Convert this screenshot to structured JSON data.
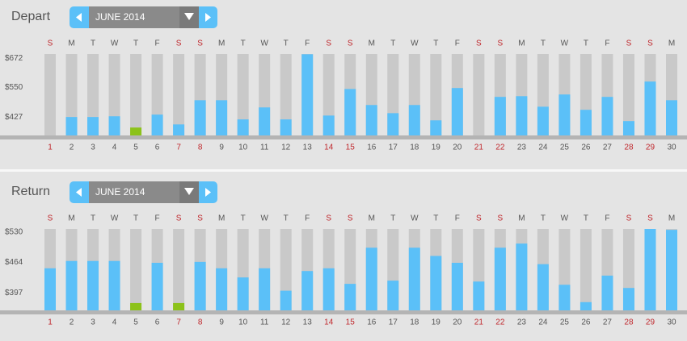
{
  "chart_data": [
    {
      "type": "bar",
      "title": "Depart",
      "month_label": "JUNE 2014",
      "weekdays": [
        "S",
        "M",
        "T",
        "W",
        "T",
        "F",
        "S",
        "S",
        "M",
        "T",
        "W",
        "T",
        "F",
        "S",
        "S",
        "M",
        "T",
        "W",
        "T",
        "F",
        "S",
        "S",
        "M",
        "T",
        "W",
        "T",
        "F",
        "S",
        "S",
        "M"
      ],
      "categories": [
        "1",
        "2",
        "3",
        "4",
        "5",
        "6",
        "7",
        "8",
        "9",
        "10",
        "11",
        "12",
        "13",
        "14",
        "15",
        "16",
        "17",
        "18",
        "19",
        "20",
        "21",
        "22",
        "23",
        "24",
        "25",
        "26",
        "27",
        "28",
        "29",
        "30"
      ],
      "category_colors": [
        "#c0282d",
        "#555555",
        "#555555",
        "#555555",
        "#555555",
        "#555555",
        "#c0282d",
        "#c0282d",
        "#555555",
        "#555555",
        "#555555",
        "#555555",
        "#555555",
        "#c0282d",
        "#c0282d",
        "#555555",
        "#555555",
        "#555555",
        "#555555",
        "#555555",
        "#c0282d",
        "#c0282d",
        "#555555",
        "#555555",
        "#555555",
        "#555555",
        "#555555",
        "#c0282d",
        "#c0282d",
        "#555555"
      ],
      "values": [
        null,
        427,
        427,
        430,
        383,
        437,
        396,
        497,
        497,
        417,
        467,
        417,
        689,
        433,
        544,
        477,
        443,
        477,
        413,
        548,
        null,
        511,
        514,
        470,
        521,
        457,
        511,
        410,
        575,
        497
      ],
      "colors": [
        null,
        "#5bc0f8",
        "#5bc0f8",
        "#5bc0f8",
        "#8cc21a",
        "#5bc0f8",
        "#5bc0f8",
        "#5bc0f8",
        "#5bc0f8",
        "#5bc0f8",
        "#5bc0f8",
        "#5bc0f8",
        "#5bc0f8",
        "#5bc0f8",
        "#5bc0f8",
        "#5bc0f8",
        "#5bc0f8",
        "#5bc0f8",
        "#5bc0f8",
        "#5bc0f8",
        null,
        "#5bc0f8",
        "#5bc0f8",
        "#5bc0f8",
        "#5bc0f8",
        "#5bc0f8",
        "#5bc0f8",
        "#5bc0f8",
        "#5bc0f8",
        "#5bc0f8"
      ],
      "ylim": [
        350,
        690
      ],
      "yticks": [
        {
          "value": 427,
          "label": "$427"
        },
        {
          "value": 550,
          "label": "$550"
        },
        {
          "value": 672,
          "label": "$672"
        }
      ]
    },
    {
      "type": "bar",
      "title": "Return",
      "month_label": "JUNE 2014",
      "weekdays": [
        "S",
        "M",
        "T",
        "W",
        "T",
        "F",
        "S",
        "S",
        "M",
        "T",
        "W",
        "T",
        "F",
        "S",
        "S",
        "M",
        "T",
        "W",
        "T",
        "F",
        "S",
        "S",
        "M",
        "T",
        "W",
        "T",
        "F",
        "S",
        "S",
        "M"
      ],
      "categories": [
        "1",
        "2",
        "3",
        "4",
        "5",
        "6",
        "7",
        "8",
        "9",
        "10",
        "11",
        "12",
        "13",
        "14",
        "15",
        "16",
        "17",
        "18",
        "19",
        "20",
        "21",
        "22",
        "23",
        "24",
        "25",
        "26",
        "27",
        "28",
        "29",
        "30"
      ],
      "category_colors": [
        "#c0282d",
        "#555555",
        "#555555",
        "#555555",
        "#555555",
        "#555555",
        "#c0282d",
        "#c0282d",
        "#555555",
        "#555555",
        "#555555",
        "#555555",
        "#555555",
        "#c0282d",
        "#c0282d",
        "#555555",
        "#555555",
        "#555555",
        "#555555",
        "#555555",
        "#c0282d",
        "#c0282d",
        "#555555",
        "#555555",
        "#555555",
        "#555555",
        "#555555",
        "#c0282d",
        "#c0282d",
        "#555555"
      ],
      "values": [
        451,
        467,
        467,
        467,
        375,
        463,
        375,
        465,
        451,
        431,
        451,
        402,
        445,
        451,
        417,
        496,
        424,
        496,
        478,
        463,
        422,
        496,
        505,
        460,
        415,
        377,
        435,
        408,
        537,
        535
      ],
      "colors": [
        "#5bc0f8",
        "#5bc0f8",
        "#5bc0f8",
        "#5bc0f8",
        "#8cc21a",
        "#5bc0f8",
        "#8cc21a",
        "#5bc0f8",
        "#5bc0f8",
        "#5bc0f8",
        "#5bc0f8",
        "#5bc0f8",
        "#5bc0f8",
        "#5bc0f8",
        "#5bc0f8",
        "#5bc0f8",
        "#5bc0f8",
        "#5bc0f8",
        "#5bc0f8",
        "#5bc0f8",
        "#5bc0f8",
        "#5bc0f8",
        "#5bc0f8",
        "#5bc0f8",
        "#5bc0f8",
        "#5bc0f8",
        "#5bc0f8",
        "#5bc0f8",
        "#5bc0f8",
        "#5bc0f8"
      ],
      "ylim": [
        359,
        537
      ],
      "yticks": [
        {
          "value": 397,
          "label": "$397"
        },
        {
          "value": 464,
          "label": "$464"
        },
        {
          "value": 530,
          "label": "$530"
        }
      ]
    }
  ]
}
